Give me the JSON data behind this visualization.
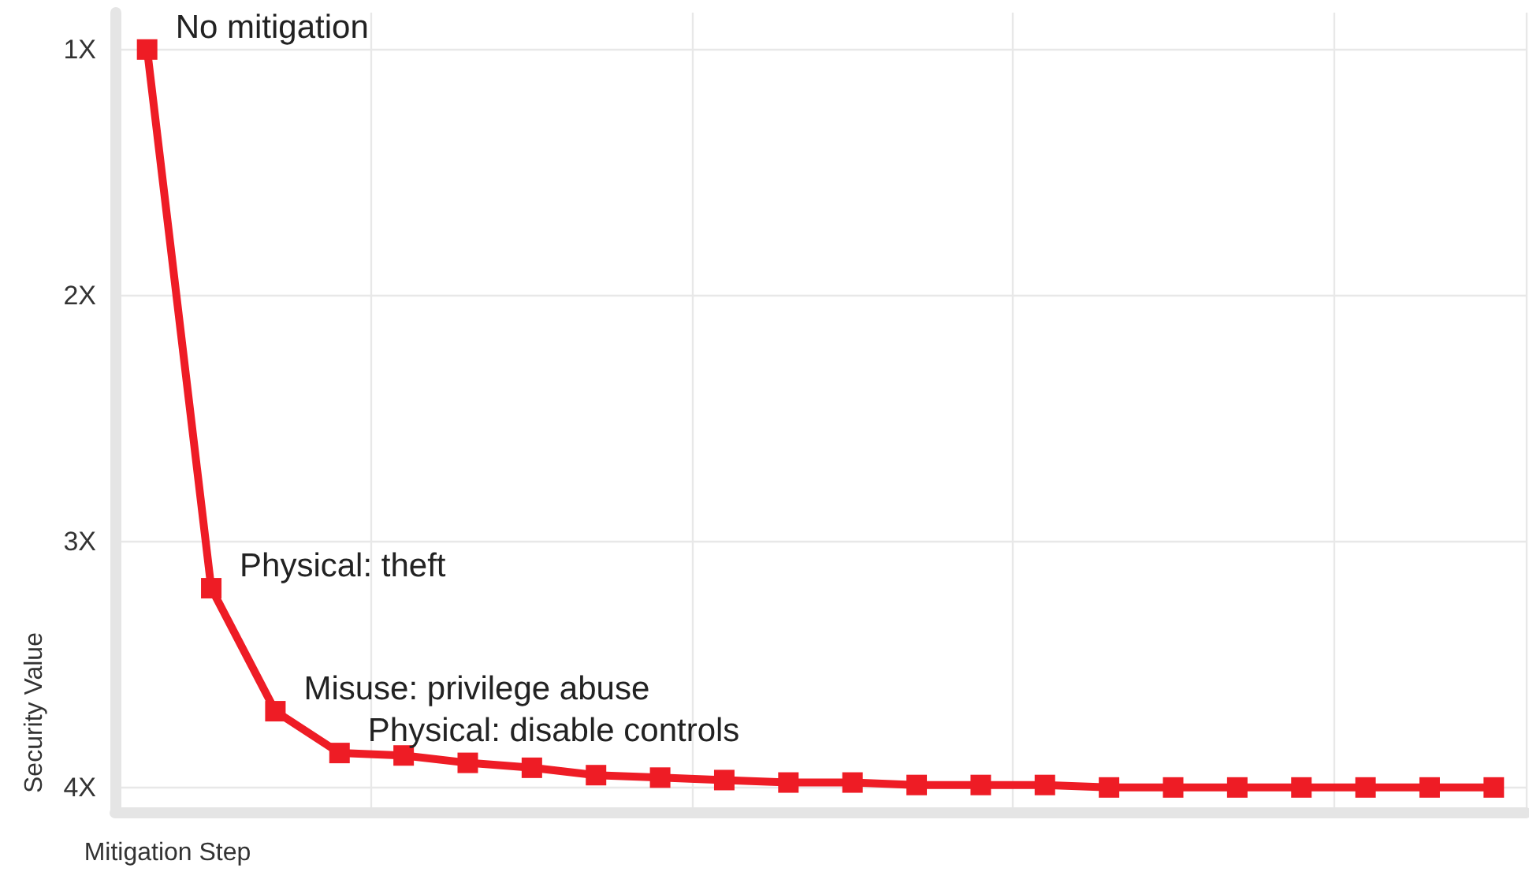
{
  "chart_data": {
    "type": "line",
    "xlabel": "Mitigation Step",
    "ylabel": "Security Value",
    "categories": [
      null,
      null,
      null,
      null,
      null,
      null,
      null,
      null,
      null,
      null,
      null,
      null,
      null,
      null,
      null,
      null,
      null,
      null,
      null,
      null,
      null,
      null
    ],
    "series": [
      {
        "color": "#ee1c25",
        "values": [
          1,
          3.19,
          3.69,
          3.86,
          3.87,
          3.9,
          3.92,
          3.95,
          3.96,
          3.97,
          3.98,
          3.98,
          3.99,
          3.99,
          3.99,
          4,
          4,
          4,
          4,
          4,
          4,
          4
        ]
      }
    ],
    "ylim": [
      4.1,
      0.85
    ],
    "yticks": [
      {
        "value": 1,
        "label": "1X"
      },
      {
        "value": 2,
        "label": "2X"
      },
      {
        "value": 3,
        "label": "3X"
      },
      {
        "value": 4,
        "label": "4X"
      }
    ],
    "tick_labels": "y",
    "grid": true,
    "marker": "square",
    "line_style": "solid",
    "annotations": [
      "No mitigation",
      "Physical: theft",
      "Misuse: privilege abuse",
      "Physical: disable controls"
    ]
  }
}
